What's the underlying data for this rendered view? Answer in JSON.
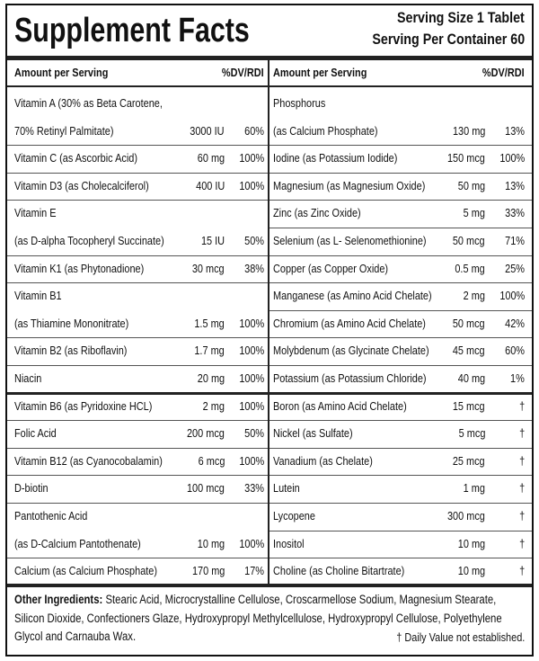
{
  "header": {
    "title": "Supplement Facts",
    "serving_size": "Serving Size 1 Tablet",
    "servings_per_container": "Serving Per Container 60"
  },
  "columns": [
    {
      "head_amount": "Amount per Serving",
      "head_dv": "%DV/RDI",
      "items": [
        {
          "lines": [
            "Vitamin A (30% as Beta Carotene,",
            "70% Retinyl Palmitate)"
          ],
          "amount": "3000 IU",
          "dv": "60%"
        },
        {
          "lines": [
            "Vitamin C (as Ascorbic Acid)"
          ],
          "amount": "60 mg",
          "dv": "100%"
        },
        {
          "lines": [
            "Vitamin D3 (as Cholecalciferol)"
          ],
          "amount": "400 IU",
          "dv": "100%"
        },
        {
          "lines": [
            "Vitamin E",
            "(as D-alpha Tocopheryl Succinate)"
          ],
          "amount": "15 IU",
          "dv": "50%"
        },
        {
          "lines": [
            "Vitamin K1 (as Phytonadione)"
          ],
          "amount": "30 mcg",
          "dv": "38%"
        },
        {
          "lines": [
            "Vitamin B1",
            "(as Thiamine Mononitrate)"
          ],
          "amount": "1.5 mg",
          "dv": "100%"
        },
        {
          "lines": [
            "Vitamin B2 (as Riboflavin)"
          ],
          "amount": "1.7 mg",
          "dv": "100%"
        },
        {
          "lines": [
            "Niacin"
          ],
          "amount": "20 mg",
          "dv": "100%"
        },
        {
          "lines": [
            "Vitamin B6 (as Pyridoxine HCL)"
          ],
          "amount": "2 mg",
          "dv": "100%"
        },
        {
          "lines": [
            "Folic Acid"
          ],
          "amount": "200 mcg",
          "dv": "50%"
        },
        {
          "lines": [
            "Vitamin B12 (as Cyanocobalamin)"
          ],
          "amount": "6 mcg",
          "dv": "100%"
        },
        {
          "lines": [
            "D-biotin"
          ],
          "amount": "100 mcg",
          "dv": "33%"
        },
        {
          "lines": [
            "Pantothenic Acid",
            "(as D-Calcium Pantothenate)"
          ],
          "amount": "10 mg",
          "dv": "100%"
        },
        {
          "lines": [
            "Calcium (as Calcium Phosphate)"
          ],
          "amount": "170 mg",
          "dv": "17%"
        }
      ]
    },
    {
      "head_amount": "Amount per Serving",
      "head_dv": "%DV/RDI",
      "items": [
        {
          "lines": [
            "Phosphorus",
            "(as Calcium Phosphate)"
          ],
          "amount": "130 mg",
          "dv": "13%"
        },
        {
          "lines": [
            " Iodine (as Potassium Iodide)"
          ],
          "amount": "150 mcg",
          "dv": "100%"
        },
        {
          "lines": [
            "Magnesium (as Magnesium Oxide)"
          ],
          "amount": "50 mg",
          "dv": "13%"
        },
        {
          "lines": [
            "Zinc (as Zinc Oxide)"
          ],
          "amount": "5 mg",
          "dv": "33%"
        },
        {
          "lines": [
            "Selenium (as  L- Selenomethionine)"
          ],
          "amount": "50 mcg",
          "dv": "71%"
        },
        {
          "lines": [
            "Copper (as Copper Oxide)"
          ],
          "amount": "0.5 mg",
          "dv": "25%"
        },
        {
          "lines": [
            "Manganese (as Amino Acid Chelate)"
          ],
          "amount": "2 mg",
          "dv": "100%"
        },
        {
          "lines": [
            "Chromium (as Amino Acid Chelate)"
          ],
          "amount": "50 mcg",
          "dv": "42%"
        },
        {
          "lines": [
            "Molybdenum (as Glycinate Chelate)"
          ],
          "amount": "45 mcg",
          "dv": "60%"
        },
        {
          "lines": [
            "Potassium  (as Potassium Chloride)"
          ],
          "amount": "40 mg",
          "dv": "1%"
        },
        {
          "lines": [
            "Boron (as Amino Acid Chelate)"
          ],
          "amount": "15 mcg",
          "dv": "†"
        },
        {
          "lines": [
            "Nickel (as Sulfate)"
          ],
          "amount": "5 mcg",
          "dv": "†"
        },
        {
          "lines": [
            "Vanadium (as Chelate)"
          ],
          "amount": "25 mcg",
          "dv": "†"
        },
        {
          "lines": [
            "Lutein"
          ],
          "amount": "1 mg",
          "dv": "†"
        },
        {
          "lines": [
            "Lycopene"
          ],
          "amount": "300 mcg",
          "dv": "†"
        },
        {
          "lines": [
            "Inositol"
          ],
          "amount": "10 mg",
          "dv": "†"
        },
        {
          "lines": [
            "Choline (as Choline Bitartrate)"
          ],
          "amount": "10 mg",
          "dv": "†"
        }
      ]
    }
  ],
  "footer": {
    "label": "Other Ingredients:",
    "text": "Stearic Acid, Microcrystalline Cellulose, Croscarmellose Sodium, Magnesium Stearate, Silicon Dioxide, Confectioners Glaze, Hydroxypropyl Methylcellulose, Hydroxypropyl Cellulose, Polyethylene Glycol and Carnauba Wax.",
    "note": "† Daily Value not established."
  }
}
